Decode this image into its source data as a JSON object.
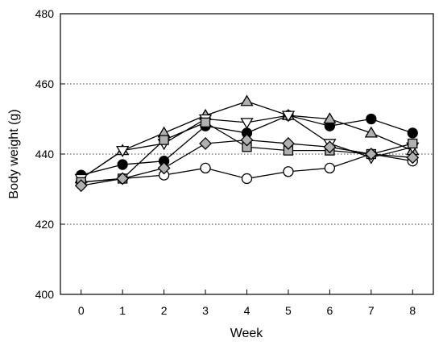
{
  "chart_data": {
    "type": "line",
    "xlabel": "Week",
    "ylabel": "Body weight (g)",
    "x": [
      0,
      1,
      2,
      3,
      4,
      5,
      6,
      7,
      8
    ],
    "xlim": [
      -0.5,
      8.5
    ],
    "ylim": [
      400,
      480
    ],
    "yticks": [
      400,
      420,
      440,
      460,
      480
    ],
    "grid": "horizontal dotted",
    "legend": "none",
    "series": [
      {
        "marker": "circle-open",
        "fill": "#ffffff",
        "values": [
          432,
          433,
          434,
          436,
          433,
          435,
          436,
          440,
          438
        ]
      },
      {
        "marker": "circle-filled",
        "fill": "#000000",
        "values": [
          434,
          437,
          438,
          448,
          446,
          451,
          448,
          450,
          446
        ]
      },
      {
        "marker": "triangle-up",
        "fill": "#b0b0b0",
        "values": [
          433,
          441,
          446,
          451,
          455,
          451,
          450,
          446,
          441
        ]
      },
      {
        "marker": "triangle-down",
        "fill": "#ffffff",
        "values": [
          433,
          441,
          443,
          450,
          449,
          451,
          443,
          439,
          442
        ]
      },
      {
        "marker": "square",
        "fill": "#b0b0b0",
        "values": [
          432,
          433,
          444,
          449,
          442,
          441,
          441,
          440,
          443
        ]
      },
      {
        "marker": "diamond",
        "fill": "#b0b0b0",
        "values": [
          431,
          433,
          436,
          443,
          444,
          443,
          442,
          440,
          439
        ]
      }
    ]
  }
}
